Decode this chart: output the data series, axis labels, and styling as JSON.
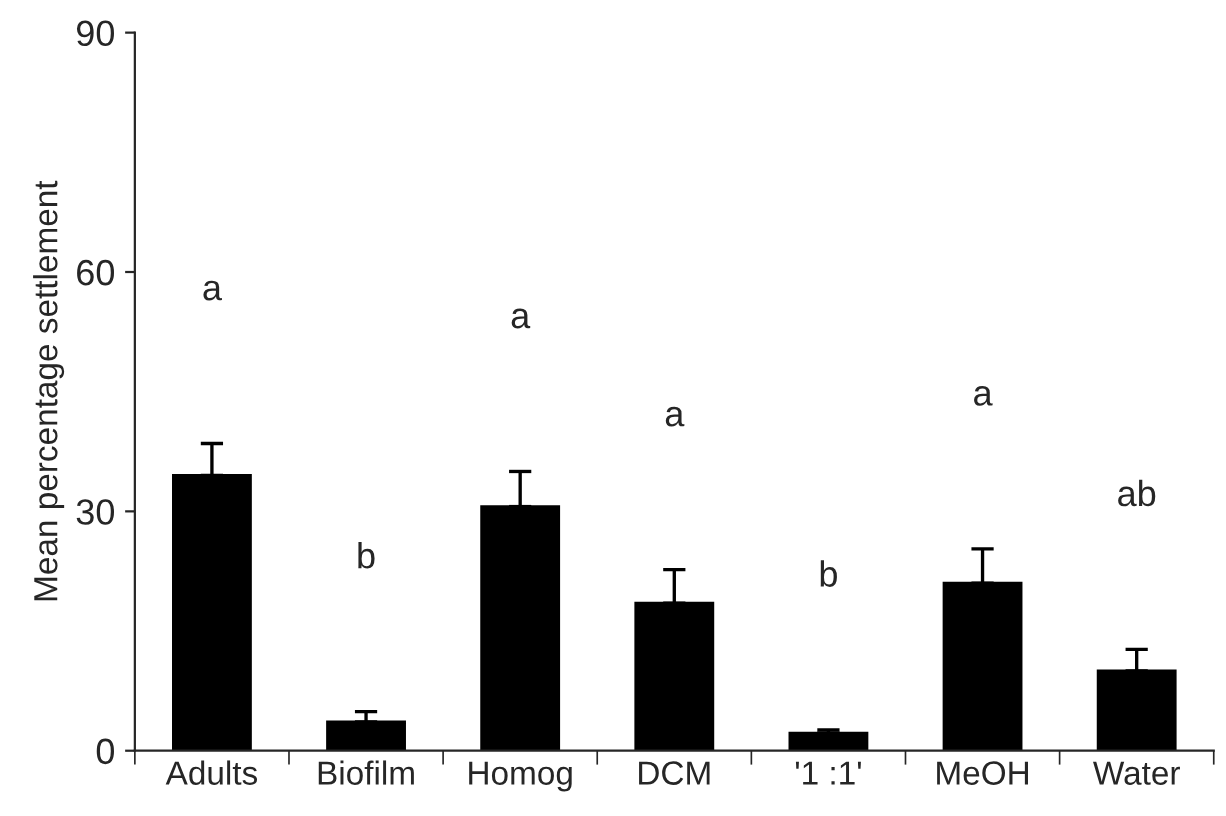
{
  "chart_data": {
    "type": "bar",
    "ylabel": "Mean percentage settlement",
    "categories": [
      "Adults",
      "Biofilm",
      "Homog",
      "DCM",
      "'1 :1'",
      "MeOH",
      "Water"
    ],
    "values": [
      34.5,
      3.6,
      30.6,
      18.5,
      2.2,
      21,
      10
    ],
    "errors": [
      4,
      1.3,
      4.4,
      4.2,
      0.4,
      4.3,
      2.7
    ],
    "color": "#000000",
    "ylim": [
      0,
      90
    ],
    "yticks": [
      0,
      30,
      60,
      90
    ],
    "grid": false,
    "annotations": [
      "a",
      "b",
      "a",
      "a",
      "b",
      "a",
      "ab"
    ]
  }
}
